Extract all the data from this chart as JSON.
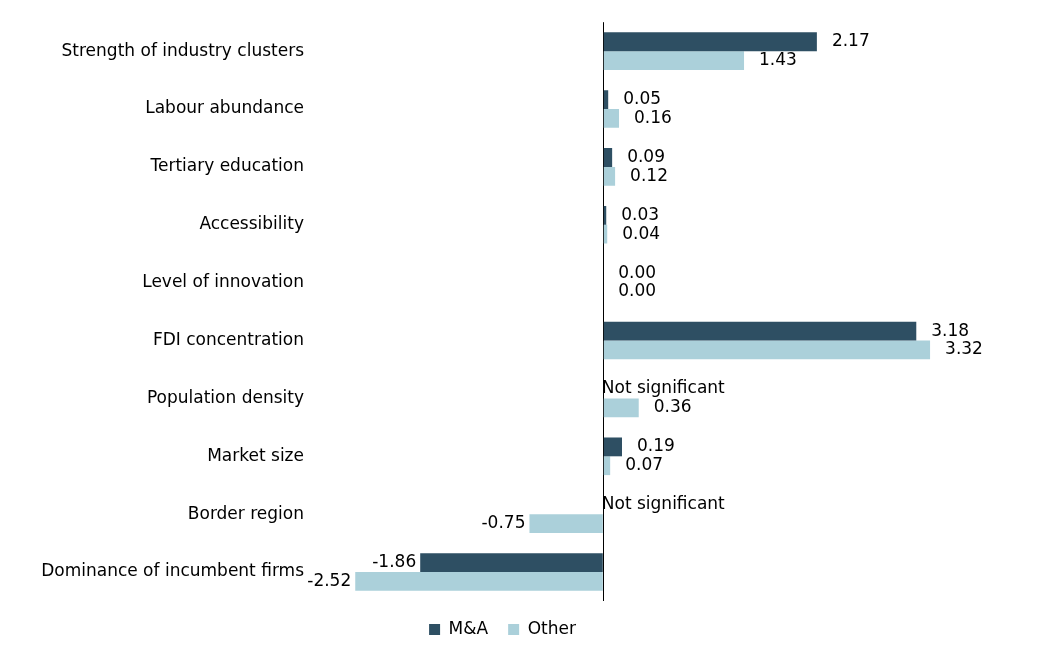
{
  "chart_data": {
    "type": "bar",
    "orientation": "horizontal",
    "categories": [
      "Strength of industry clusters",
      "Labour abundance",
      "Tertiary education",
      "Accessibility",
      "Level of innovation",
      "FDI concentration",
      "Population density",
      "Market size",
      "Border region",
      "Dominance of incumbent firms"
    ],
    "series": [
      {
        "name": "M&A",
        "color": "#2e4f63",
        "values": [
          2.17,
          0.05,
          0.09,
          0.03,
          0.0,
          3.18,
          null,
          0.19,
          null,
          -1.86
        ],
        "value_labels": [
          "2.17",
          "0.05",
          "0.09",
          "0.03",
          "0.00",
          "3.18",
          "Not significant",
          "0.19",
          "Not significant",
          "-1.86"
        ]
      },
      {
        "name": "Other",
        "color": "#abd0da",
        "values": [
          1.43,
          0.16,
          0.12,
          0.04,
          0.0,
          3.32,
          0.36,
          0.07,
          -0.75,
          -2.52
        ],
        "value_labels": [
          "1.43",
          "0.16",
          "0.12",
          "0.04",
          "0.00",
          "3.32",
          "0.36",
          "0.07",
          "-0.75",
          "-2.52"
        ]
      }
    ],
    "legend": "bottom",
    "grid": false
  }
}
